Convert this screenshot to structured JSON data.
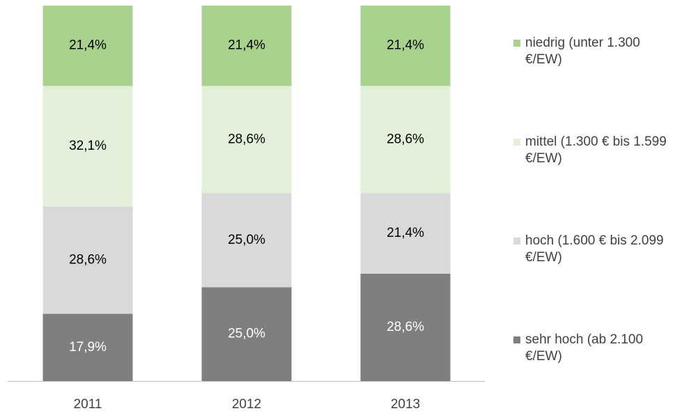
{
  "chart_data": {
    "type": "bar",
    "stacked": true,
    "categories": [
      "2011",
      "2012",
      "2013"
    ],
    "ylim": [
      0,
      100
    ],
    "series": [
      {
        "name": "sehr hoch (ab 2.100 €/EW)",
        "color": "#7f7f7f",
        "values": [
          17.9,
          25.0,
          28.6
        ],
        "value_labels": [
          "17,9%",
          "25,0%",
          "28,6%"
        ]
      },
      {
        "name": "hoch (1.600 € bis 2.099 €/EW)",
        "color": "#d9d9d9",
        "values": [
          28.6,
          25.0,
          21.4
        ],
        "value_labels": [
          "28,6%",
          "25,0%",
          "21,4%"
        ]
      },
      {
        "name": "mittel (1.300 € bis 1.599 €/EW)",
        "color": "#e2f0d9",
        "values": [
          32.1,
          28.6,
          28.6
        ],
        "value_labels": [
          "32,1%",
          "28,6%",
          "28,6%"
        ]
      },
      {
        "name": "niedrig (unter 1.300 €/EW)",
        "color": "#a9d18e",
        "values": [
          21.4,
          21.4,
          21.4
        ],
        "value_labels": [
          "21,4%",
          "21,4%",
          "21,4%"
        ]
      }
    ],
    "legend": "right"
  }
}
